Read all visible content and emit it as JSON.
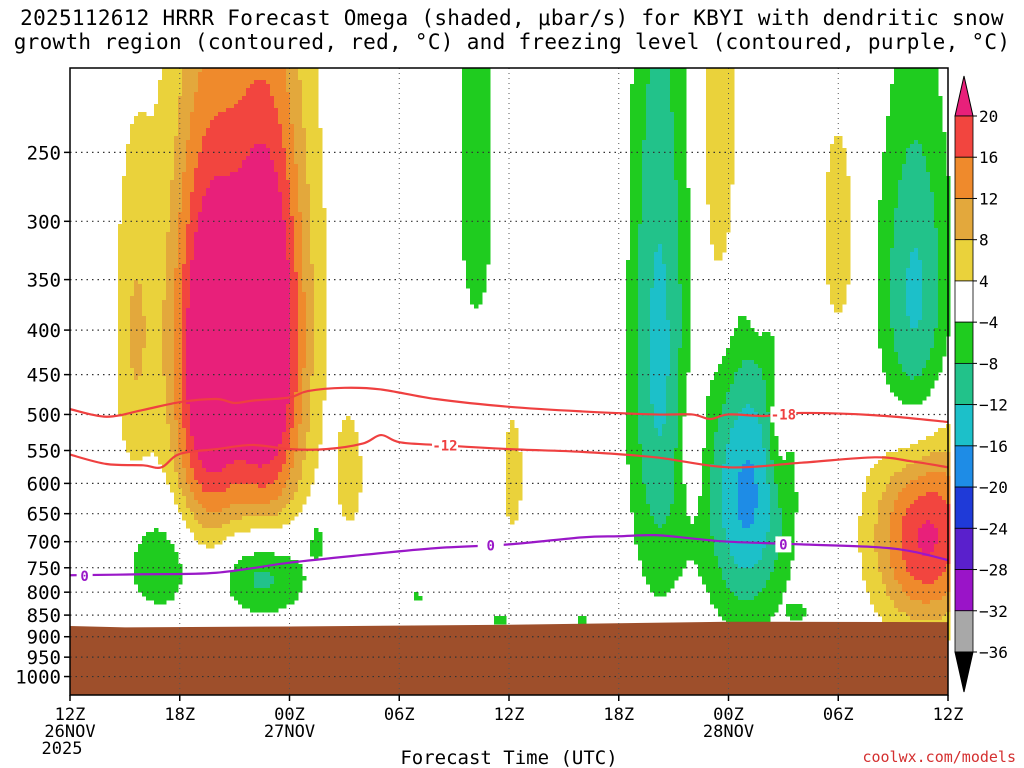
{
  "title_lines": [
    "2025112612 HRRR Forecast Omega (shaded, μbar/s) for KBYI with dendritic snow",
    "growth region (contoured, red, °C) and freezing level (contoured, purple, °C)"
  ],
  "credit": "coolwx.com/models",
  "chart_data": {
    "type": "heatmap",
    "title": "2025112612 HRRR Forecast Omega (shaded, μbar/s) for KBYI with dendritic snow growth region (contoured, red, °C) and freezing level (contoured, purple, °C)",
    "xlabel": "Forecast Time (UTC)",
    "ylabel": "",
    "x_unit": "forecast hour",
    "xlim": [
      0,
      48
    ],
    "ylim_hpa": [
      200,
      1050
    ],
    "x_ticks": [
      {
        "hour": 0,
        "label": "12Z",
        "date": "26NOV",
        "year": "2025"
      },
      {
        "hour": 6,
        "label": "18Z"
      },
      {
        "hour": 12,
        "label": "00Z",
        "date": "27NOV"
      },
      {
        "hour": 18,
        "label": "06Z"
      },
      {
        "hour": 24,
        "label": "12Z"
      },
      {
        "hour": 30,
        "label": "18Z"
      },
      {
        "hour": 36,
        "label": "00Z",
        "date": "28NOV"
      },
      {
        "hour": 42,
        "label": "06Z"
      },
      {
        "hour": 48,
        "label": "12Z"
      }
    ],
    "y_ticks": [
      250,
      300,
      350,
      400,
      450,
      500,
      550,
      600,
      650,
      700,
      750,
      800,
      850,
      900,
      950,
      1000
    ],
    "colorbar": {
      "labels": [
        "20",
        "16",
        "12",
        "8",
        "4",
        "-4",
        "-8",
        "-12",
        "-16",
        "-20",
        "-24",
        "-28",
        "-32",
        "-36"
      ],
      "bins": [
        {
          "range": [
            20,
            99
          ],
          "color": "#e8207a"
        },
        {
          "range": [
            16,
            20
          ],
          "color": "#f2453f"
        },
        {
          "range": [
            12,
            16
          ],
          "color": "#ef8a2c"
        },
        {
          "range": [
            8,
            12
          ],
          "color": "#e3a83c"
        },
        {
          "range": [
            4,
            8
          ],
          "color": "#ead23b"
        },
        {
          "range": [
            -4,
            4
          ],
          "color": "#ffffff"
        },
        {
          "range": [
            -8,
            -4
          ],
          "color": "#1fcc1f"
        },
        {
          "range": [
            -12,
            -8
          ],
          "color": "#22c28a"
        },
        {
          "range": [
            -16,
            -12
          ],
          "color": "#1cc0c9"
        },
        {
          "range": [
            -20,
            -16
          ],
          "color": "#1e8ce6"
        },
        {
          "range": [
            -24,
            -20
          ],
          "color": "#1f3ad8"
        },
        {
          "range": [
            -28,
            -24
          ],
          "color": "#5a20cc"
        },
        {
          "range": [
            -32,
            -28
          ],
          "color": "#9a14c8"
        },
        {
          "range": [
            -36,
            -32
          ],
          "color": "#a8a8a8"
        },
        {
          "range": [
            -99,
            -36
          ],
          "color": "#000000"
        }
      ]
    },
    "omega_features": [
      {
        "name": "rising-core-west",
        "center": [
          7.5,
          455
        ],
        "sigma": [
          1.3,
          160
        ],
        "amp": 22
      },
      {
        "name": "rising-core-east",
        "center": [
          10.8,
          430
        ],
        "sigma": [
          1.4,
          165
        ],
        "amp": 23
      },
      {
        "name": "rising-wide-base",
        "center": [
          9.2,
          330
        ],
        "sigma": [
          3.0,
          190
        ],
        "amp": 9
      },
      {
        "name": "rising-west-flank",
        "center": [
          3.5,
          410
        ],
        "sigma": [
          0.8,
          130
        ],
        "amp": 7
      },
      {
        "name": "rising-near-15h",
        "center": [
          15.3,
          590
        ],
        "sigma": [
          0.6,
          75
        ],
        "amp": 6
      },
      {
        "name": "rising-near-24h",
        "center": [
          24.2,
          590
        ],
        "sigma": [
          0.5,
          90
        ],
        "amp": 6
      },
      {
        "name": "rising-near-34h",
        "center": [
          34.0,
          540
        ],
        "sigma": [
          0.5,
          75
        ],
        "amp": 6
      },
      {
        "name": "rising-upper-35h",
        "center": [
          35.5,
          260
        ],
        "sigma": [
          0.8,
          110
        ],
        "amp": 8
      },
      {
        "name": "rising-upper-42h",
        "center": [
          42.0,
          310
        ],
        "sigma": [
          0.7,
          70
        ],
        "amp": 7
      },
      {
        "name": "rising-37-5h",
        "center": [
          37.6,
          360
        ],
        "sigma": [
          0.4,
          35
        ],
        "amp": 5
      },
      {
        "name": "rising-30h",
        "center": [
          30.0,
          230
        ],
        "sigma": [
          0.3,
          80
        ],
        "amp": 5
      },
      {
        "name": "rising-low-east",
        "center": [
          46.8,
          680
        ],
        "sigma": [
          2.0,
          130
        ],
        "amp": 22
      },
      {
        "name": "rising-38-7h",
        "center": [
          38.7,
          530
        ],
        "sigma": [
          0.4,
          60
        ],
        "amp": 5
      },
      {
        "name": "sinking-tower-32h",
        "center": [
          32.2,
          420
        ],
        "sigma": [
          1.2,
          250
        ],
        "amp": -13
      },
      {
        "name": "sinking-upper-22h",
        "center": [
          22.2,
          260
        ],
        "sigma": [
          0.8,
          110
        ],
        "amp": -7
      },
      {
        "name": "sinking-low-37h",
        "center": [
          37.0,
          620
        ],
        "sigma": [
          1.6,
          160
        ],
        "amp": -17
      },
      {
        "name": "sinking-upper-east",
        "center": [
          46.2,
          390
        ],
        "sigma": [
          1.4,
          140
        ],
        "amp": -14
      },
      {
        "name": "sinking-low-5h",
        "center": [
          5.0,
          740
        ],
        "sigma": [
          1.4,
          75
        ],
        "amp": -8
      },
      {
        "name": "sinking-low-10h",
        "center": [
          10.5,
          760
        ],
        "sigma": [
          1.8,
          65
        ],
        "amp": -12
      },
      {
        "name": "sinking-tiny-13h",
        "center": [
          13.5,
          690
        ],
        "sigma": [
          0.35,
          35
        ],
        "amp": -5
      },
      {
        "name": "sinking-tiny-19h",
        "center": [
          19.0,
          810
        ],
        "sigma": [
          0.3,
          12
        ],
        "amp": -5
      },
      {
        "name": "sinking-tiny-23h",
        "center": [
          23.5,
          860
        ],
        "sigma": [
          0.5,
          12
        ],
        "amp": -5
      },
      {
        "name": "sinking-tiny-28h",
        "center": [
          28.0,
          860
        ],
        "sigma": [
          0.3,
          12
        ],
        "amp": -5
      },
      {
        "name": "sinking-tiny-40h",
        "center": [
          39.8,
          845
        ],
        "sigma": [
          0.4,
          18
        ],
        "amp": -5
      }
    ],
    "terrain": {
      "color": "#9e4f2b",
      "points": [
        [
          0,
          875
        ],
        [
          3,
          878
        ],
        [
          12,
          876
        ],
        [
          24,
          872
        ],
        [
          36,
          865
        ],
        [
          48,
          866
        ]
      ]
    },
    "contours": [
      {
        "name": "isotherm-minus-18",
        "label": "-18",
        "label_hour": 39,
        "color": "#ef4040",
        "points": [
          [
            0,
            493
          ],
          [
            2,
            503
          ],
          [
            4,
            494
          ],
          [
            6,
            484
          ],
          [
            8,
            480
          ],
          [
            9,
            485
          ],
          [
            10,
            482
          ],
          [
            12,
            478
          ],
          [
            13,
            470
          ],
          [
            15,
            466
          ],
          [
            17,
            468
          ],
          [
            20,
            480
          ],
          [
            24,
            490
          ],
          [
            28,
            496
          ],
          [
            32,
            500
          ],
          [
            34,
            500
          ],
          [
            35,
            506
          ],
          [
            36,
            500
          ],
          [
            38,
            502
          ],
          [
            40,
            498
          ],
          [
            44,
            501
          ],
          [
            48,
            510
          ]
        ]
      },
      {
        "name": "isotherm-minus-12",
        "label": "-12",
        "label_hour": 20.5,
        "color": "#ef4040",
        "points": [
          [
            0,
            556
          ],
          [
            2,
            570
          ],
          [
            4,
            572
          ],
          [
            5,
            575
          ],
          [
            6,
            555
          ],
          [
            8,
            548
          ],
          [
            10,
            542
          ],
          [
            12,
            548
          ],
          [
            14,
            548
          ],
          [
            16,
            540
          ],
          [
            17,
            528
          ],
          [
            18,
            538
          ],
          [
            20,
            542
          ],
          [
            24,
            548
          ],
          [
            28,
            552
          ],
          [
            32,
            560
          ],
          [
            36,
            575
          ],
          [
            40,
            568
          ],
          [
            44,
            560
          ],
          [
            46,
            566
          ],
          [
            48,
            575
          ]
        ]
      },
      {
        "name": "isotherm-zero",
        "label": "0",
        "label_hour": 23,
        "color": "#9a18c8",
        "points": [
          [
            0,
            765
          ],
          [
            4,
            763
          ],
          [
            8,
            760
          ],
          [
            12,
            740
          ],
          [
            16,
            725
          ],
          [
            20,
            712
          ],
          [
            24,
            705
          ],
          [
            28,
            692
          ],
          [
            30,
            690
          ],
          [
            32,
            688
          ],
          [
            34,
            694
          ],
          [
            36,
            700
          ],
          [
            40,
            705
          ],
          [
            44,
            710
          ],
          [
            46,
            718
          ],
          [
            48,
            735
          ]
        ]
      }
    ],
    "extra_labels": [
      {
        "text": "0",
        "hour": 0.8,
        "hpa": 767,
        "color": "#9a18c8"
      },
      {
        "text": "0",
        "hour": 39.0,
        "hpa": 705,
        "color": "#9a18c8"
      }
    ]
  }
}
